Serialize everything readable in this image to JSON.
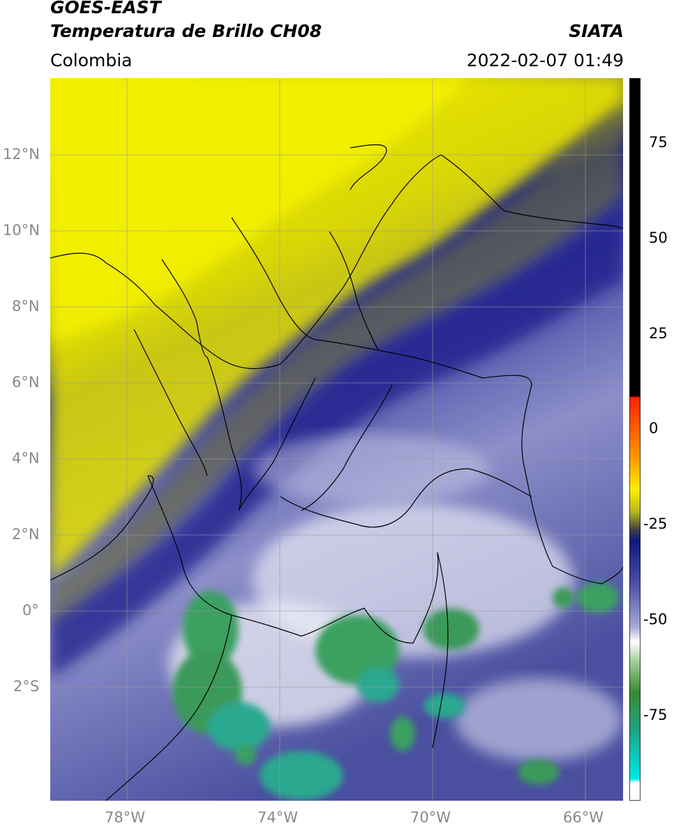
{
  "header": {
    "satellite": "GOES-EAST",
    "product": "Temperatura de Brillo CH08",
    "region": "Colombia",
    "source": "SIATA",
    "datetime": "2022-02-07 01:49"
  },
  "map": {
    "lon_range": [
      -80,
      -65
    ],
    "lat_range": [
      -5,
      14
    ],
    "grid": true,
    "lat_ticks": [
      {
        "value": 12,
        "label": "12°N"
      },
      {
        "value": 10,
        "label": "10°N"
      },
      {
        "value": 8,
        "label": "8°N"
      },
      {
        "value": 6,
        "label": "6°N"
      },
      {
        "value": 4,
        "label": "4°N"
      },
      {
        "value": 2,
        "label": "2°N"
      },
      {
        "value": 0,
        "label": "0°"
      },
      {
        "value": -2,
        "label": "2°S"
      }
    ],
    "lon_ticks": [
      {
        "value": -78,
        "label": "78°W"
      },
      {
        "value": -74,
        "label": "74°W"
      },
      {
        "value": -70,
        "label": "70°W"
      },
      {
        "value": -66,
        "label": "66°W"
      }
    ],
    "colors": {
      "warm_yellow": "#f2f000",
      "olive": "#8a8a30",
      "deep_blue": "#1a1f8a",
      "lavender": "#8c8fc8",
      "white_cloud": "#f4f4f8",
      "cold_green": "#3aa060",
      "teal": "#2aa890"
    }
  },
  "colorbar": {
    "range": [
      -97,
      90
    ],
    "ticks": [
      {
        "value": 75,
        "label": "75"
      },
      {
        "value": 50,
        "label": "50"
      },
      {
        "value": 25,
        "label": "25"
      },
      {
        "value": 0,
        "label": "0"
      },
      {
        "value": -25,
        "label": "-25"
      },
      {
        "value": -50,
        "label": "-50"
      },
      {
        "value": -75,
        "label": "-75"
      }
    ]
  }
}
